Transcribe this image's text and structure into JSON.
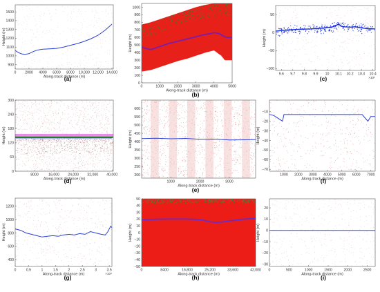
{
  "chart_data": [
    {
      "panel": "a",
      "type": "line",
      "letter": "(a)",
      "xlabel": "Along-track distance (m)",
      "ylabel": "Height (m)",
      "xlim": [
        0,
        14200
      ],
      "ylim": [
        850,
        1580
      ],
      "xticks": [
        0,
        2000,
        4000,
        6000,
        8000,
        10000,
        12000,
        14000
      ],
      "xtick_labels": [
        "0",
        "2000",
        "4000",
        "6000",
        "8000",
        "10,000",
        "12,000",
        "14,000"
      ],
      "yticks": [
        900,
        1000,
        1100,
        1200,
        1300,
        1400,
        1500
      ],
      "ytick_labels": [
        "900",
        "1000",
        "1100",
        "1200",
        "1300",
        "1400",
        "1500"
      ],
      "colors": {
        "signal": "#2a3fd6",
        "noise": "#d9bfbf"
      },
      "noise_density": "sparse",
      "series": [
        {
          "x": [
            0,
            500,
            1000,
            1500,
            2000,
            2500,
            3000,
            3500,
            4000,
            5000,
            6000,
            7000,
            8000,
            9000,
            10000,
            11000,
            12000,
            13000,
            14000
          ],
          "y": [
            1060,
            1035,
            1020,
            1018,
            1025,
            1045,
            1060,
            1070,
            1075,
            1080,
            1085,
            1100,
            1120,
            1140,
            1165,
            1195,
            1235,
            1290,
            1360
          ]
        }
      ]
    },
    {
      "panel": "b",
      "type": "scatter",
      "letter": "(b)",
      "xlabel": "Along-track distance (m)",
      "ylabel": "Height (m)",
      "xlim": [
        0,
        5000
      ],
      "ylim": [
        0,
        1050
      ],
      "xticks": [
        0,
        1000,
        2000,
        3000,
        4000,
        5000
      ],
      "xtick_labels": [
        "0",
        "1000",
        "2000",
        "3000",
        "4000",
        "5000"
      ],
      "yticks": [
        0,
        100,
        200,
        300,
        400,
        500,
        600,
        700,
        800,
        900,
        1000
      ],
      "ytick_labels": [
        "0",
        "100",
        "200",
        "300",
        "400",
        "500",
        "600",
        "700",
        "800",
        "900",
        "1000"
      ],
      "colors": {
        "signal": "#6a1fc0",
        "noise": "#e8201a",
        "surface": "#2f8a2f"
      },
      "noise_density": "dense",
      "noise_band": {
        "x": [
          0,
          500,
          1000,
          1500,
          2000,
          2500,
          3000,
          3500,
          4000,
          4400,
          4600,
          5000
        ],
        "low": [
          150,
          170,
          210,
          250,
          290,
          320,
          360,
          400,
          430,
          360,
          300,
          300
        ],
        "high": [
          770,
          800,
          840,
          880,
          920,
          960,
          1000,
          1030,
          1050,
          1050,
          1050,
          1050
        ]
      },
      "series": [
        {
          "x": [
            0,
            500,
            1000,
            1500,
            2000,
            2500,
            3000,
            3500,
            3800,
            4000,
            4300,
            4500,
            4700,
            5000
          ],
          "y": [
            470,
            440,
            480,
            520,
            550,
            580,
            610,
            640,
            650,
            665,
            650,
            620,
            600,
            600
          ]
        }
      ]
    },
    {
      "panel": "c",
      "type": "line",
      "letter": "(c)",
      "xlabel": "",
      "ylabel": "Height (m)",
      "xlim": [
        955000,
        1042000
      ],
      "ylim": [
        -105,
        75
      ],
      "xticks": [
        960000,
        970000,
        980000,
        990000,
        1000000,
        1010000,
        1020000,
        1030000,
        1040000
      ],
      "xtick_labels": [
        "9.6",
        "9.7",
        "9.8",
        "9.9",
        "10",
        "10.1",
        "10.2",
        "10.3",
        "10.4"
      ],
      "x_exponent": "×10⁵",
      "yticks": [
        -100,
        -50,
        0,
        50
      ],
      "ytick_labels": [
        "−100",
        "−50",
        "0",
        "50"
      ],
      "colors": {
        "signal": "#1a2ee0",
        "noise": "#e2b0b0"
      },
      "noise_density": "sparse",
      "series": [
        {
          "x": [
            955000,
            965000,
            975000,
            985000,
            995000,
            1000000,
            1005000,
            1008000,
            1010000,
            1012000,
            1015000,
            1020000,
            1025000,
            1030000,
            1035000,
            1042000
          ],
          "y": [
            4,
            7,
            9,
            10,
            12,
            14,
            16,
            20,
            24,
            18,
            16,
            15,
            16,
            13,
            11,
            10
          ]
        }
      ]
    },
    {
      "panel": "d",
      "type": "line",
      "letter": "(d)",
      "xlabel": "Along-track distance (m)",
      "ylabel": "Height (m)",
      "xlim": [
        0,
        40500
      ],
      "ylim": [
        0,
        300
      ],
      "xticks": [
        8000,
        16000,
        24000,
        32000,
        40000
      ],
      "xtick_labels": [
        "8000",
        "16,000",
        "24,000",
        "32,000",
        "40,000"
      ],
      "yticks": [
        0,
        60,
        120,
        180,
        240,
        300
      ],
      "ytick_labels": [
        "0",
        "60",
        "120",
        "180",
        "240",
        "300"
      ],
      "colors": {
        "signal": "#2a3fd6",
        "noise": "#cf9a9a",
        "surface": "#2f8a2f",
        "above": "#e060e0"
      },
      "noise_density": "medium",
      "series": [
        {
          "x": [
            0,
            40000
          ],
          "y": [
            140,
            140
          ]
        }
      ]
    },
    {
      "panel": "e",
      "type": "scatter",
      "letter": "(e)",
      "xlabel": "Along-track distance (m)",
      "ylabel": "Height (m)",
      "xlim": [
        0,
        3900
      ],
      "ylim": [
        180,
        650
      ],
      "xticks": [
        1000,
        2000,
        3000
      ],
      "xtick_labels": [
        "1000",
        "2000",
        "3000"
      ],
      "yticks": [
        200,
        250,
        300,
        350,
        400,
        450,
        500,
        550,
        600
      ],
      "ytick_labels": [
        "200",
        "250",
        "300",
        "350",
        "400",
        "450",
        "500",
        "550",
        "600"
      ],
      "colors": {
        "signal": "#2a3fd6",
        "noise": "#d96060"
      },
      "noise_density": "medium",
      "series": [
        {
          "x": [
            0,
            500,
            1000,
            1500,
            2000,
            2500,
            3000,
            3500,
            3900
          ],
          "y": [
            418,
            420,
            417,
            419,
            414,
            415,
            410,
            411,
            412
          ]
        }
      ]
    },
    {
      "panel": "f",
      "type": "line",
      "letter": "(f)",
      "xlabel": "Along-track distance (m)",
      "ylabel": "Height (m)",
      "xlim": [
        0,
        7300
      ],
      "ylim": [
        -72,
        2
      ],
      "xticks": [
        1000,
        2000,
        3000,
        4000,
        5000,
        6000,
        7000
      ],
      "xtick_labels": [
        "1000",
        "2000",
        "3000",
        "4000",
        "5000",
        "6000",
        "7000"
      ],
      "yticks": [
        -70,
        -60,
        -50,
        -40,
        -30,
        -20,
        -10
      ],
      "ytick_labels": [
        "−70",
        "−60",
        "−50",
        "−40",
        "−30",
        "−20",
        "−10"
      ],
      "colors": {
        "signal": "#2a3fd6",
        "noise": "#c86a6a"
      },
      "noise_density": "sparse",
      "series": [
        {
          "x": [
            0,
            300,
            600,
            900,
            1000,
            1200,
            2000,
            3000,
            4000,
            5000,
            5200,
            5800,
            6400,
            6800,
            7000,
            7300
          ],
          "y": [
            -13,
            -14,
            -17,
            -20,
            -13,
            -13,
            -13,
            -13,
            -13,
            -13,
            -13,
            -13,
            -13,
            -20,
            -15,
            -15
          ]
        }
      ]
    },
    {
      "panel": "g",
      "type": "line",
      "letter": "(g)",
      "xlabel": "Along-track distance (m)",
      "ylabel": "Height (m)",
      "xlim": [
        0,
        36000
      ],
      "ylim": [
        300,
        1320
      ],
      "xticks": [
        0,
        5000,
        10000,
        15000,
        20000,
        25000,
        30000,
        35000
      ],
      "xtick_labels": [
        "0",
        "0.5",
        "1",
        "1.5",
        "2",
        "2.5",
        "3",
        "3.5"
      ],
      "x_exponent": "×10⁴",
      "yticks": [
        400,
        600,
        800,
        1000,
        1200
      ],
      "ytick_labels": [
        "400",
        "600",
        "800",
        "1000",
        "1200"
      ],
      "colors": {
        "signal": "#2a3fd6",
        "noise": "#c8a0a0"
      },
      "noise_density": "sparse",
      "series": [
        {
          "x": [
            0,
            2000,
            4000,
            6000,
            8000,
            10000,
            12000,
            14000,
            16000,
            18000,
            20000,
            22000,
            24000,
            26000,
            28000,
            30000,
            32000,
            33500,
            34500,
            35500,
            36000
          ],
          "y": [
            860,
            840,
            800,
            780,
            760,
            740,
            750,
            760,
            750,
            770,
            780,
            770,
            790,
            780,
            820,
            800,
            780,
            770,
            820,
            900,
            880
          ]
        }
      ]
    },
    {
      "panel": "h",
      "type": "scatter",
      "letter": "(h)",
      "xlabel": "Along-track distance (m)",
      "ylabel": "Height (m)",
      "xlim": [
        0,
        42000
      ],
      "ylim": [
        -50,
        50
      ],
      "xticks": [
        0,
        8400,
        16800,
        25200,
        33600,
        42000
      ],
      "xtick_labels": [
        "0",
        "8400",
        "16,800",
        "25,200",
        "33,600",
        "42,000"
      ],
      "yticks": [
        -50,
        -40,
        -30,
        -20,
        -10,
        0,
        10,
        20,
        30,
        40,
        50
      ],
      "ytick_labels": [
        "−50",
        "−40",
        "−30",
        "−20",
        "−10",
        "0",
        "10",
        "20",
        "30",
        "40",
        "50"
      ],
      "colors": {
        "signal": "#5a2fe0",
        "noise": "#ec1c16",
        "surface": "#3e8a3e"
      },
      "noise_density": "full",
      "series": [
        {
          "x": [
            0,
            8400,
            16800,
            22000,
            25200,
            28000,
            33600,
            38000,
            42000
          ],
          "y": [
            19,
            20,
            20,
            19,
            16,
            15,
            18,
            20,
            21
          ]
        }
      ]
    },
    {
      "panel": "i",
      "type": "line",
      "letter": "(i)",
      "xlabel": "Along-track distance (m)",
      "ylabel": "Height (m)",
      "xlim": [
        0,
        2700
      ],
      "ylim": [
        -32,
        28
      ],
      "xticks": [
        0,
        500,
        1000,
        1500,
        2000,
        2500
      ],
      "xtick_labels": [
        "0",
        "500",
        "1000",
        "1500",
        "2000",
        "2500"
      ],
      "yticks": [
        -30,
        -20,
        -10,
        0,
        10,
        20
      ],
      "ytick_labels": [
        "−30",
        "−20",
        "−10",
        "0",
        "10",
        "20"
      ],
      "colors": {
        "signal": "#2a3fd6",
        "noise": "#d6b0b0"
      },
      "noise_density": "sparse",
      "series": [
        {
          "x": [
            0,
            2700
          ],
          "y": [
            0,
            0
          ]
        }
      ]
    }
  ]
}
